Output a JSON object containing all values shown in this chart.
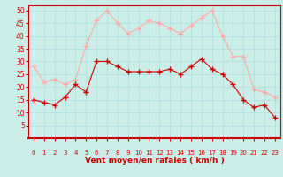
{
  "hours": [
    0,
    1,
    2,
    3,
    4,
    5,
    6,
    7,
    8,
    9,
    10,
    11,
    12,
    13,
    14,
    15,
    16,
    17,
    18,
    19,
    20,
    21,
    22,
    23
  ],
  "wind_avg": [
    15,
    14,
    13,
    16,
    21,
    18,
    30,
    30,
    28,
    26,
    26,
    26,
    26,
    27,
    25,
    28,
    31,
    27,
    25,
    21,
    15,
    12,
    13,
    8
  ],
  "wind_gust": [
    28,
    22,
    23,
    21,
    23,
    36,
    46,
    50,
    45,
    41,
    43,
    46,
    45,
    43,
    41,
    44,
    47,
    50,
    40,
    32,
    32,
    19,
    18,
    16
  ],
  "bg_color": "#cceee8",
  "grid_color": "#aadddd",
  "line_avg_color": "#cc0000",
  "line_gust_color": "#ffaaaa",
  "marker_avg_color": "#cc0000",
  "marker_gust_color": "#ffaaaa",
  "xlabel": "Vent moyen/en rafales ( km/h )",
  "label_color": "#cc0000",
  "tick_color": "#cc0000",
  "spine_color": "#cc0000",
  "ylim": [
    0,
    52
  ],
  "yticks": [
    5,
    10,
    15,
    20,
    25,
    30,
    35,
    40,
    45,
    50
  ],
  "arrow_char": "↴"
}
